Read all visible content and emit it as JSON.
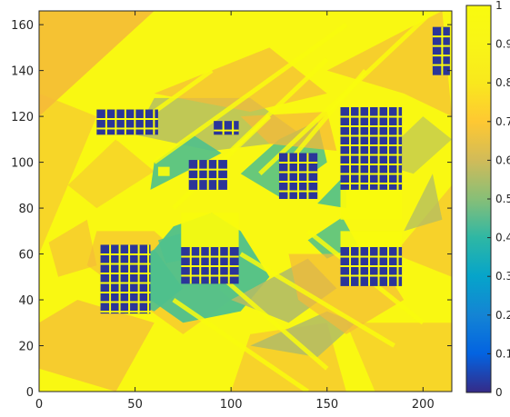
{
  "chart_data": {
    "type": "heatmap",
    "title": "",
    "xlabel": "",
    "ylabel": "",
    "xlim": [
      0,
      215
    ],
    "ylim": [
      0,
      166
    ],
    "x_ticks": [
      "0",
      "50",
      "100",
      "150",
      "200"
    ],
    "y_ticks": [
      "0",
      "20",
      "40",
      "60",
      "80",
      "100",
      "120",
      "140",
      "160"
    ],
    "colorbar": {
      "colormap": "parula",
      "range": [
        0,
        1
      ],
      "tick_labels": [
        "0",
        "0.1",
        "0.2",
        "0.3",
        "0.4",
        "0.5",
        "0.6",
        "0.7",
        "0.8",
        "0.9",
        "1"
      ]
    },
    "background_value": 0.95,
    "colors": {
      "low": "#352a87",
      "high": "#f9fb0e",
      "orange": "#f5b93a",
      "green": "#4fc08d",
      "olive": "#b2bc66"
    },
    "regions": [
      {
        "kind": "rect",
        "x": [
          30,
          62
        ],
        "y": [
          112,
          123
        ],
        "value": 0.02
      },
      {
        "kind": "rect",
        "x": [
          91,
          104
        ],
        "y": [
          112,
          118
        ],
        "value": 0.02
      },
      {
        "kind": "rect",
        "x": [
          78,
          98
        ],
        "y": [
          88,
          101
        ],
        "value": 0.02
      },
      {
        "kind": "rect",
        "x": [
          125,
          145
        ],
        "y": [
          84,
          104
        ],
        "value": 0.02
      },
      {
        "kind": "rect",
        "x": [
          157,
          189
        ],
        "y": [
          88,
          124
        ],
        "value": 0.02
      },
      {
        "kind": "rect",
        "x": [
          74,
          104
        ],
        "y": [
          47,
          63
        ],
        "value": 0.02
      },
      {
        "kind": "rect",
        "x": [
          157,
          189
        ],
        "y": [
          46,
          63
        ],
        "value": 0.02
      },
      {
        "kind": "rect",
        "x": [
          32,
          58
        ],
        "y": [
          34,
          64
        ],
        "value": 0.02
      },
      {
        "kind": "rect",
        "x": [
          205,
          214
        ],
        "y": [
          138,
          159
        ],
        "value": 0.02
      }
    ]
  }
}
